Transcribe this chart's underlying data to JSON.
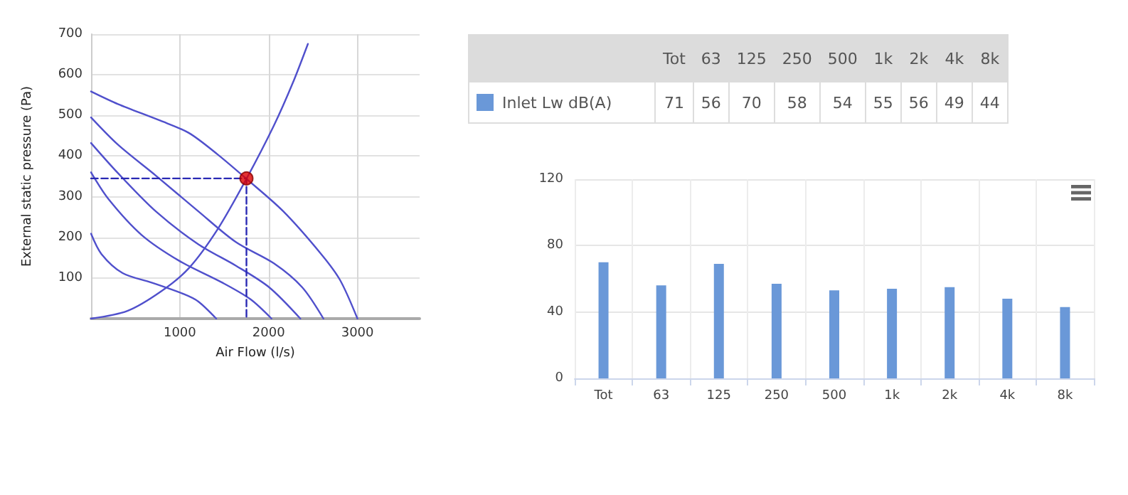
{
  "chart_data": [
    {
      "type": "line",
      "xlabel": "Air Flow (l/s)",
      "ylabel": "External static pressure (Pa)",
      "xlim": [
        0,
        3700
      ],
      "xticks": [
        1000,
        2000,
        3000
      ],
      "ylim": [
        0,
        700
      ],
      "yticks": [
        100,
        200,
        300,
        400,
        500,
        600,
        700
      ],
      "grid": true,
      "marker": "none",
      "line_style": "solid",
      "series": [
        {
          "color": "#5050cc",
          "x": [
            0,
            303,
            782,
            1101,
            1420,
            1750,
            2165,
            2591,
            2804,
            3000
          ],
          "values": [
            559,
            528,
            487,
            457,
            405,
            344,
            264,
            159,
            95,
            0
          ]
        },
        {
          "color": "#5050cc",
          "x": [
            0,
            303,
            729,
            1208,
            1633,
            2059,
            2378,
            2617
          ],
          "values": [
            495,
            428,
            352,
            264,
            188,
            136,
            77,
            0
          ]
        },
        {
          "color": "#5050cc",
          "x": [
            0,
            303,
            729,
            1208,
            1633,
            2006,
            2357
          ],
          "values": [
            432,
            358,
            264,
            183,
            130,
            77,
            0
          ]
        },
        {
          "color": "#5050cc",
          "x": [
            0,
            197,
            569,
            995,
            1474,
            1793,
            2032
          ],
          "values": [
            360,
            294,
            206,
            142,
            89,
            48,
            0
          ]
        },
        {
          "color": "#5050cc",
          "x": [
            0,
            117,
            356,
            676,
            1048,
            1208,
            1410
          ],
          "values": [
            209,
            159,
            112,
            89,
            60,
            42,
            0
          ]
        },
        {
          "color": "#5050cc",
          "x": [
            0,
            410,
            782,
            1101,
            1420,
            1750,
            2059,
            2272,
            2442
          ],
          "values": [
            0,
            19,
            66,
            124,
            218,
            344,
            475,
            580,
            676
          ]
        },
        {
          "color": "#2a2ab4",
          "line_style": "dashed",
          "x": [
            0,
            1750,
            1750
          ],
          "values": [
            345,
            345,
            0
          ]
        },
        {
          "type": "scatter",
          "marker": "circle",
          "color": "#dd0000",
          "x": [
            1750
          ],
          "values": [
            345
          ]
        }
      ]
    },
    {
      "type": "other",
      "data_labels": true,
      "categories": [
        "Tot",
        "63",
        "125",
        "250",
        "500",
        "1k",
        "2k",
        "4k",
        "8k"
      ],
      "series": [
        {
          "name": "Inlet Lw dB(A)",
          "color": "#6a98d8",
          "values": [
            71,
            56,
            70,
            58,
            54,
            55,
            56,
            49,
            44
          ]
        }
      ]
    },
    {
      "type": "bar",
      "categories": [
        "Tot",
        "63",
        "125",
        "250",
        "500",
        "1k",
        "2k",
        "4k",
        "8k"
      ],
      "ylim": [
        0,
        120
      ],
      "yticks": [
        0,
        40,
        80,
        120
      ],
      "grid": true,
      "series": [
        {
          "color": "#6a98d8",
          "values": [
            70,
            56,
            69,
            57,
            53,
            54,
            55,
            48,
            43
          ]
        }
      ]
    }
  ]
}
